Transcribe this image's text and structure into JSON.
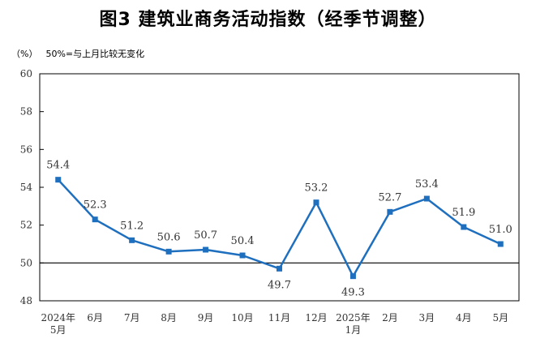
{
  "title": "图3  建筑业商务活动指数（经季节调整）",
  "unit_label": "（%）",
  "note": "50%=与上月比较无变化",
  "colors": {
    "series": "#1f6fbf",
    "axis": "#000000",
    "reference": "#000000"
  },
  "chart_data": {
    "type": "line",
    "categories": [
      [
        "2024年",
        "5月"
      ],
      [
        "6月"
      ],
      [
        "7月"
      ],
      [
        "8月"
      ],
      [
        "9月"
      ],
      [
        "10月"
      ],
      [
        "11月"
      ],
      [
        "12月"
      ],
      [
        "2025年",
        "1月"
      ],
      [
        "2月"
      ],
      [
        "3月"
      ],
      [
        "4月"
      ],
      [
        "5月"
      ]
    ],
    "series": [
      {
        "values": [
          54.4,
          52.3,
          51.2,
          50.6,
          50.7,
          50.4,
          49.7,
          53.2,
          49.3,
          52.7,
          53.4,
          51.9,
          51.0
        ]
      }
    ],
    "data_labels": [
      "54.4",
      "52.3",
      "51.2",
      "50.6",
      "50.7",
      "50.4",
      "49.7",
      "53.2",
      "49.3",
      "52.7",
      "53.4",
      "51.9",
      "51.0"
    ],
    "ylim": [
      48,
      60
    ],
    "yticks": [
      48,
      50,
      52,
      54,
      56,
      58,
      60
    ],
    "reference_line": 50,
    "grid": false,
    "legend": "none"
  }
}
